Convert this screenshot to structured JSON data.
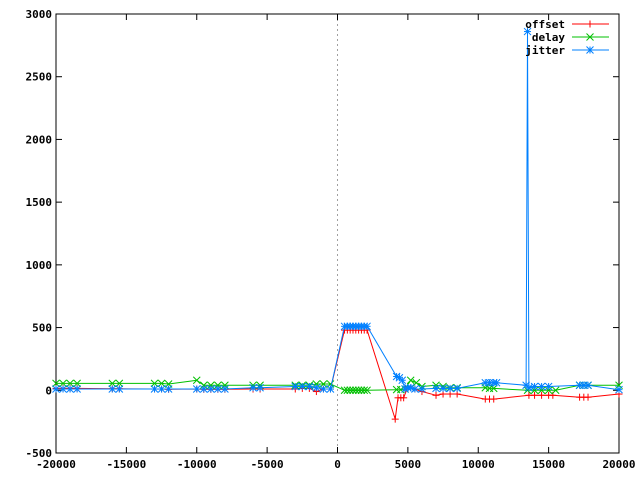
{
  "chart_data": {
    "type": "line",
    "title": "",
    "xlabel": "",
    "ylabel": "",
    "xlim": [
      -20000,
      20000
    ],
    "ylim": [
      -500,
      3000
    ],
    "x_ticks": [
      -20000,
      -15000,
      -10000,
      -5000,
      0,
      5000,
      10000,
      15000,
      20000
    ],
    "y_ticks": [
      -500,
      0,
      500,
      1000,
      1500,
      2000,
      2500,
      3000
    ],
    "zero_line": "dashed-vertical-at-x-0",
    "grid": false,
    "legend_position": "top-right",
    "series": [
      {
        "name": "offset",
        "color": "#ff0000",
        "marker": "plus",
        "x": [
          -20000,
          -19500,
          -19000,
          -18500,
          -16000,
          -15500,
          -13000,
          -12500,
          -12000,
          -10000,
          -9500,
          -9000,
          -8500,
          -8000,
          -6000,
          -5500,
          -3000,
          -2500,
          -2000,
          -1500,
          -1000,
          -500,
          500,
          700,
          900,
          1100,
          1300,
          1500,
          1700,
          1900,
          2100,
          4100,
          4300,
          4500,
          4700,
          5000,
          5500,
          6000,
          7000,
          7500,
          8000,
          8500,
          10500,
          10800,
          11100,
          13600,
          14000,
          14500,
          15000,
          15300,
          17200,
          17500,
          17800,
          20000
        ],
        "values": [
          15,
          15,
          15,
          15,
          12,
          12,
          10,
          10,
          8,
          10,
          8,
          8,
          8,
          8,
          10,
          10,
          10,
          15,
          15,
          -10,
          10,
          10,
          480,
          480,
          480,
          480,
          480,
          480,
          480,
          480,
          480,
          -230,
          -60,
          -60,
          -60,
          30,
          10,
          -10,
          -40,
          -30,
          -30,
          -30,
          -70,
          -70,
          -70,
          -40,
          -40,
          -40,
          -40,
          -40,
          -55,
          -55,
          -55,
          -30
        ]
      },
      {
        "name": "delay",
        "color": "#00c000",
        "marker": "x",
        "x": [
          -20000,
          -19500,
          -19000,
          -18500,
          -16000,
          -15500,
          -13000,
          -12500,
          -12000,
          -10000,
          -9500,
          -9000,
          -8500,
          -8000,
          -6000,
          -5500,
          -3000,
          -2500,
          -2000,
          -1500,
          -1000,
          -500,
          500,
          700,
          900,
          1100,
          1300,
          1500,
          1700,
          1900,
          2100,
          4200,
          4500,
          4800,
          5200,
          5600,
          6000,
          7000,
          7500,
          8000,
          8500,
          10500,
          10800,
          11100,
          13500,
          14000,
          14500,
          15000,
          15500,
          17200,
          17500,
          17800,
          20000
        ],
        "values": [
          55,
          55,
          55,
          55,
          55,
          55,
          55,
          55,
          50,
          80,
          40,
          40,
          40,
          40,
          40,
          40,
          40,
          40,
          40,
          50,
          50,
          50,
          0,
          0,
          0,
          0,
          0,
          0,
          0,
          0,
          0,
          5,
          5,
          10,
          80,
          60,
          30,
          40,
          30,
          20,
          20,
          20,
          15,
          15,
          0,
          0,
          0,
          0,
          0,
          40,
          40,
          40,
          40
        ]
      },
      {
        "name": "jitter",
        "color": "#0080ff",
        "marker": "star",
        "x": [
          -20000,
          -19500,
          -19000,
          -18500,
          -16000,
          -15500,
          -13000,
          -12500,
          -12000,
          -10000,
          -9500,
          -9000,
          -8500,
          -8000,
          -6000,
          -5500,
          -3000,
          -2500,
          -2000,
          -1500,
          -1000,
          -500,
          500,
          700,
          900,
          1100,
          1300,
          1500,
          1700,
          1900,
          2100,
          4200,
          4400,
          4600,
          4800,
          5000,
          5200,
          5500,
          6000,
          7000,
          7500,
          8000,
          8500,
          10500,
          10800,
          11100,
          11300,
          13400,
          13500,
          13600,
          14000,
          14500,
          15000,
          17200,
          17500,
          17800,
          20000
        ],
        "values": [
          10,
          10,
          10,
          10,
          10,
          10,
          10,
          10,
          10,
          10,
          10,
          10,
          10,
          10,
          20,
          20,
          30,
          30,
          30,
          20,
          10,
          10,
          510,
          510,
          510,
          510,
          510,
          510,
          510,
          510,
          510,
          110,
          100,
          80,
          10,
          20,
          20,
          10,
          10,
          15,
          15,
          15,
          15,
          60,
          60,
          60,
          60,
          40,
          2860,
          20,
          30,
          30,
          30,
          40,
          40,
          40,
          5
        ]
      }
    ]
  }
}
